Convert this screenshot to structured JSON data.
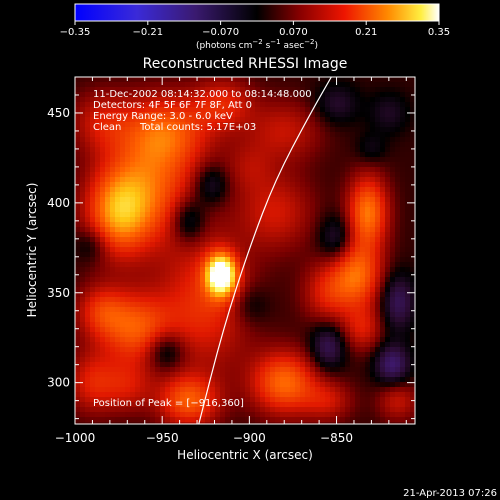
{
  "colorbar": {
    "ticks": [
      "−0.35",
      "−0.21",
      "−0.070",
      "0.070",
      "0.21",
      "0.35"
    ],
    "unit_prefix": "(photons cm",
    "unit_exp1": "−2",
    "unit_mid1": " s",
    "unit_exp2": "−1",
    "unit_mid2": " asec",
    "unit_exp3": "−2",
    "unit_suffix": ")"
  },
  "annotations": {
    "time_range": "11-Dec-2002 08:14:32.000 to 08:14:48.000",
    "detectors": "Detectors: 4F 5F 6F 7F 8F, Att 0",
    "energy": "Energy Range: 3.0 - 6.0 keV",
    "clean_label": "Clean",
    "total_counts": "Total counts: 5.17E+03",
    "peak": "Position of Peak = [−916,360]"
  },
  "footer": {
    "date": "21-Apr-2013 07:26"
  },
  "chart_data": {
    "type": "heatmap",
    "title": "Reconstructed RHESSI Image",
    "xlabel": "Heliocentric X (arcsec)",
    "ylabel": "Heliocentric Y (arcsec)",
    "xlim": [
      -1000,
      -805
    ],
    "ylim": [
      277,
      470
    ],
    "xticks": [
      -1000,
      -950,
      -900,
      -850
    ],
    "xtick_labels": [
      "−1000",
      "−950",
      "−900",
      "−850"
    ],
    "yticks": [
      300,
      350,
      400,
      450
    ],
    "ytick_labels": [
      "300",
      "350",
      "400",
      "450"
    ],
    "colorbar_range": [
      -0.35,
      0.35
    ],
    "colormap": "blue-purple-black-red-yellow-white",
    "peak_position": [
      -916,
      360
    ],
    "peak_value": 0.35,
    "limb_curve": [
      [
        -929,
        277
      ],
      [
        -915,
        330
      ],
      [
        -900,
        375
      ],
      [
        -885,
        413
      ],
      [
        -866,
        448
      ],
      [
        -853,
        470
      ]
    ],
    "blobs": [
      {
        "x": -916,
        "y": 360,
        "value": 0.35,
        "sx": 6,
        "sy": 8
      },
      {
        "x": -925,
        "y": 345,
        "value": 0.12,
        "sx": 18,
        "sy": 26
      },
      {
        "x": -975,
        "y": 395,
        "value": 0.2,
        "sx": 13,
        "sy": 17
      },
      {
        "x": -955,
        "y": 410,
        "value": 0.14,
        "sx": 18,
        "sy": 22
      },
      {
        "x": -948,
        "y": 440,
        "value": 0.14,
        "sx": 18,
        "sy": 14
      },
      {
        "x": -985,
        "y": 445,
        "value": 0.08,
        "sx": 12,
        "sy": 12
      },
      {
        "x": -965,
        "y": 330,
        "value": 0.16,
        "sx": 15,
        "sy": 14
      },
      {
        "x": -985,
        "y": 340,
        "value": 0.1,
        "sx": 10,
        "sy": 10
      },
      {
        "x": -990,
        "y": 300,
        "value": 0.1,
        "sx": 10,
        "sy": 12
      },
      {
        "x": -970,
        "y": 298,
        "value": 0.08,
        "sx": 10,
        "sy": 10
      },
      {
        "x": -935,
        "y": 290,
        "value": 0.16,
        "sx": 12,
        "sy": 10
      },
      {
        "x": -880,
        "y": 300,
        "value": 0.18,
        "sx": 13,
        "sy": 12
      },
      {
        "x": -885,
        "y": 395,
        "value": 0.09,
        "sx": 15,
        "sy": 15
      },
      {
        "x": -880,
        "y": 440,
        "value": 0.08,
        "sx": 15,
        "sy": 12
      },
      {
        "x": -915,
        "y": 455,
        "value": 0.1,
        "sx": 12,
        "sy": 10
      },
      {
        "x": -832,
        "y": 395,
        "value": 0.19,
        "sx": 8,
        "sy": 14
      },
      {
        "x": -838,
        "y": 360,
        "value": 0.17,
        "sx": 10,
        "sy": 13
      },
      {
        "x": -835,
        "y": 330,
        "value": 0.09,
        "sx": 8,
        "sy": 9
      },
      {
        "x": -855,
        "y": 350,
        "value": 0.1,
        "sx": 10,
        "sy": 12
      },
      {
        "x": -855,
        "y": 290,
        "value": 0.08,
        "sx": 10,
        "sy": 8
      },
      {
        "x": -815,
        "y": 290,
        "value": 0.08,
        "sx": 8,
        "sy": 8
      },
      {
        "x": -900,
        "y": 420,
        "value": 0.05,
        "sx": 10,
        "sy": 10
      },
      {
        "x": -935,
        "y": 390,
        "value": -0.1,
        "sx": 7,
        "sy": 9
      },
      {
        "x": -922,
        "y": 410,
        "value": -0.08,
        "sx": 7,
        "sy": 8
      },
      {
        "x": -948,
        "y": 318,
        "value": -0.1,
        "sx": 8,
        "sy": 8
      },
      {
        "x": -990,
        "y": 377,
        "value": -0.06,
        "sx": 7,
        "sy": 7
      },
      {
        "x": -850,
        "y": 455,
        "value": -0.06,
        "sx": 9,
        "sy": 8
      },
      {
        "x": -820,
        "y": 450,
        "value": -0.05,
        "sx": 8,
        "sy": 8
      },
      {
        "x": -850,
        "y": 380,
        "value": -0.08,
        "sx": 7,
        "sy": 9
      },
      {
        "x": -855,
        "y": 320,
        "value": -0.1,
        "sx": 7,
        "sy": 9
      },
      {
        "x": -815,
        "y": 345,
        "value": -0.1,
        "sx": 7,
        "sy": 11
      },
      {
        "x": -818,
        "y": 310,
        "value": -0.12,
        "sx": 7,
        "sy": 8
      },
      {
        "x": -900,
        "y": 343,
        "value": -0.05,
        "sx": 8,
        "sy": 8
      },
      {
        "x": -830,
        "y": 430,
        "value": -0.04,
        "sx": 6,
        "sy": 6
      }
    ]
  }
}
